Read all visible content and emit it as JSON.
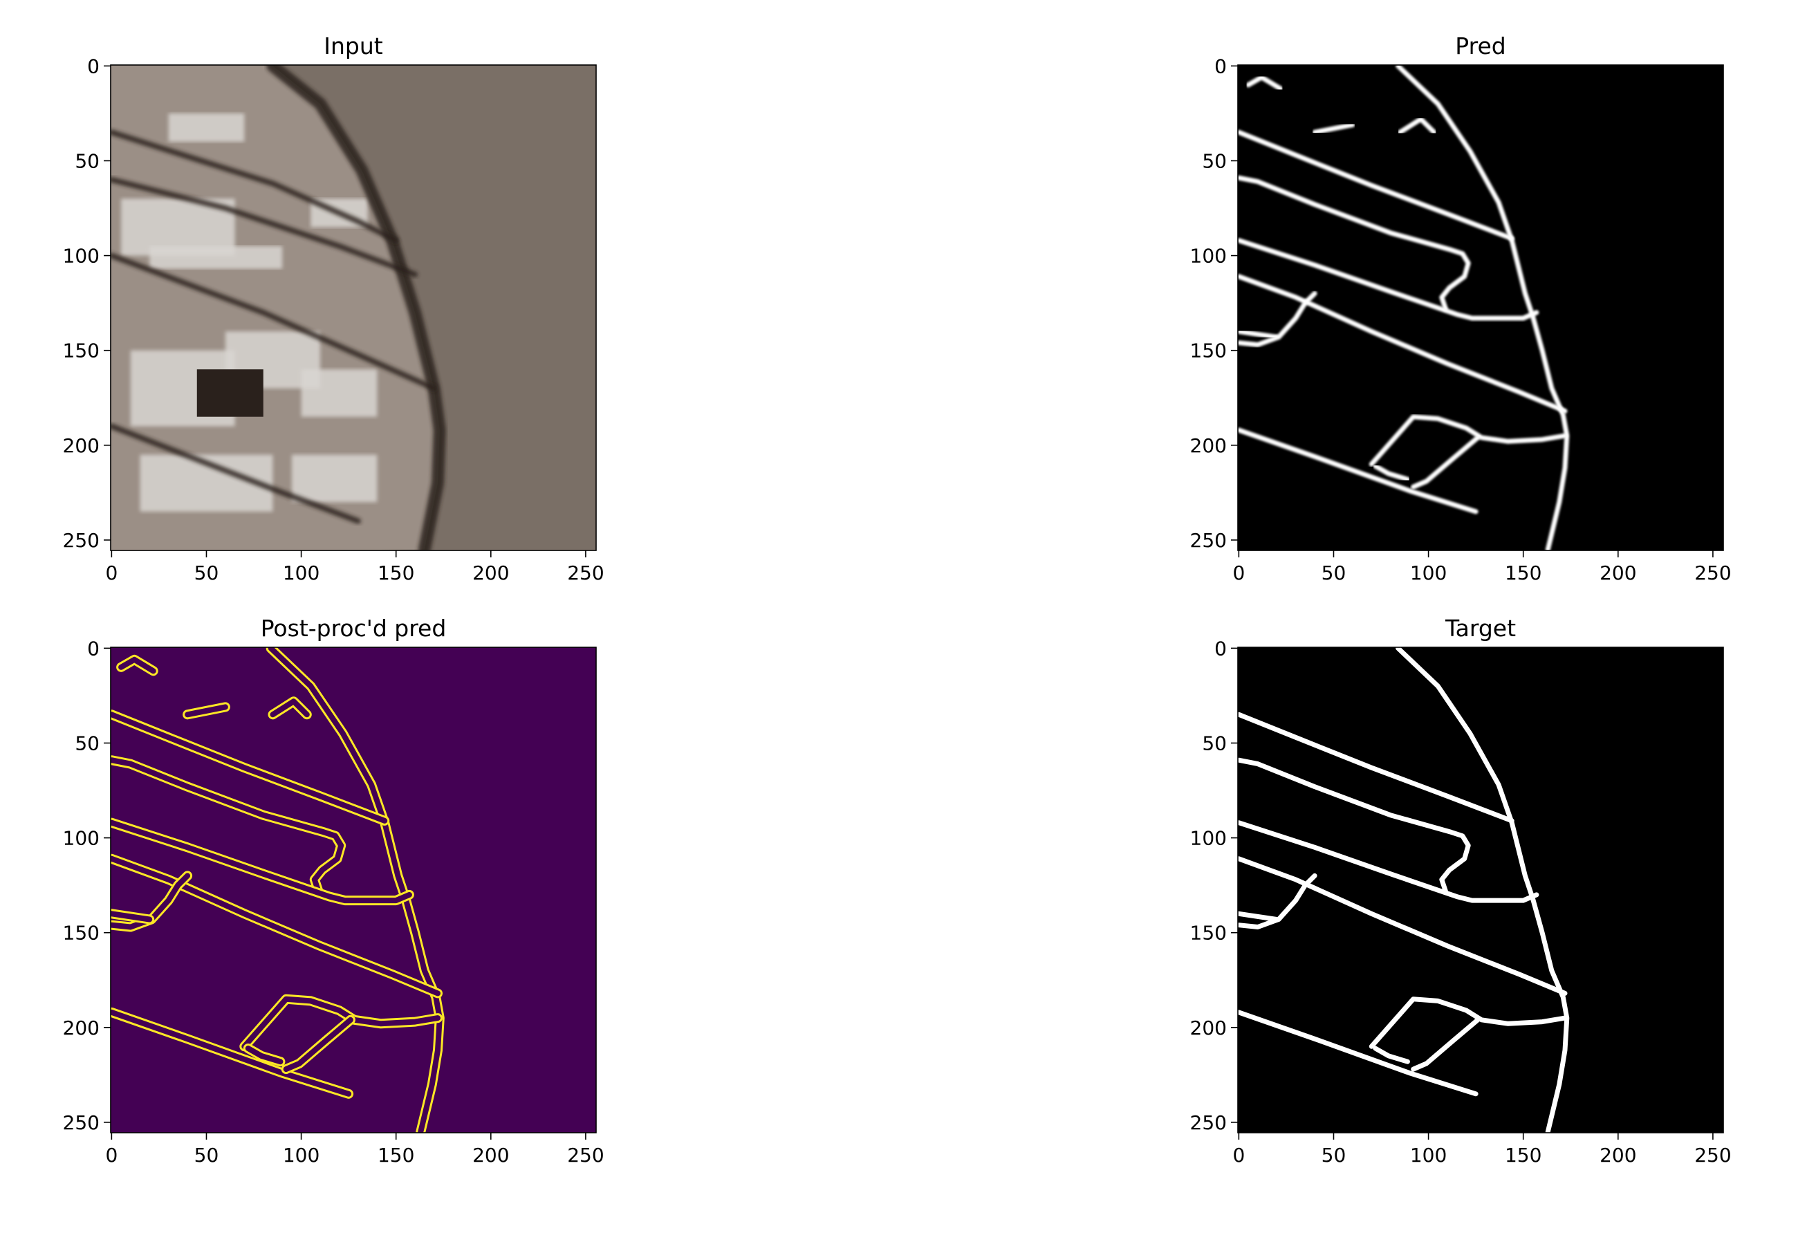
{
  "chart_data": [
    {
      "type": "image",
      "title": "Input",
      "image_kind": "satellite-photo",
      "xlim": [
        0,
        255
      ],
      "ylim": [
        255,
        0
      ],
      "xticks": [
        0,
        50,
        100,
        150,
        200,
        250
      ],
      "yticks": [
        0,
        50,
        100,
        150,
        200,
        250
      ],
      "colors": {
        "ground": "#7a6f66",
        "buildings": "#d9d6d2",
        "shadow": "#2a211c"
      },
      "features": [
        {
          "kind": "curve",
          "points": [
            [
              85,
              0
            ],
            [
              110,
              20
            ],
            [
              132,
              55
            ],
            [
              148,
              92
            ],
            [
              160,
              130
            ],
            [
              170,
              170
            ],
            [
              173,
              192
            ],
            [
              172,
              220
            ],
            [
              165,
              255
            ]
          ]
        },
        {
          "kind": "road",
          "points": [
            [
              0,
              35
            ],
            [
              85,
              62
            ],
            [
              130,
              82
            ],
            [
              150,
              92
            ]
          ]
        },
        {
          "kind": "road",
          "points": [
            [
              0,
              60
            ],
            [
              60,
              75
            ],
            [
              120,
              95
            ],
            [
              160,
              110
            ]
          ]
        },
        {
          "kind": "road",
          "points": [
            [
              0,
              100
            ],
            [
              80,
              130
            ],
            [
              170,
              170
            ]
          ]
        },
        {
          "kind": "road",
          "points": [
            [
              0,
              190
            ],
            [
              90,
              225
            ],
            [
              130,
              240
            ]
          ]
        }
      ]
    },
    {
      "type": "image",
      "title": "Pred",
      "image_kind": "grayscale-mask",
      "xlim": [
        0,
        255
      ],
      "ylim": [
        255,
        0
      ],
      "xticks": [
        0,
        50,
        100,
        150,
        200,
        250
      ],
      "yticks": [
        0,
        50,
        100,
        150,
        200,
        250
      ],
      "colors": {
        "background": "#000000",
        "foreground": "#ffffff"
      },
      "paths": [
        [
          [
            84,
            0
          ],
          [
            105,
            20
          ],
          [
            122,
            45
          ],
          [
            137,
            72
          ],
          [
            144,
            92
          ],
          [
            151,
            120
          ],
          [
            155,
            132
          ],
          [
            160,
            150
          ],
          [
            165,
            170
          ],
          [
            171,
            184
          ],
          [
            173,
            195
          ],
          [
            172,
            212
          ],
          [
            169,
            230
          ],
          [
            163,
            255
          ]
        ],
        [
          [
            0,
            35
          ],
          [
            30,
            47
          ],
          [
            70,
            63
          ],
          [
            110,
            78
          ],
          [
            144,
            91
          ]
        ],
        [
          [
            0,
            59
          ],
          [
            10,
            61
          ],
          [
            40,
            73
          ],
          [
            80,
            88
          ],
          [
            112,
            97
          ],
          [
            118,
            99
          ],
          [
            121,
            104
          ],
          [
            119,
            111
          ],
          [
            111,
            117
          ],
          [
            107,
            122
          ],
          [
            109,
            128
          ]
        ],
        [
          [
            0,
            92
          ],
          [
            40,
            105
          ],
          [
            80,
            119
          ],
          [
            115,
            131
          ],
          [
            123,
            133
          ],
          [
            150,
            133
          ],
          [
            157,
            130
          ]
        ],
        [
          [
            0,
            111
          ],
          [
            30,
            122
          ],
          [
            70,
            140
          ],
          [
            110,
            157
          ],
          [
            148,
            172
          ],
          [
            172,
            182
          ]
        ],
        [
          [
            0,
            146
          ],
          [
            10,
            147
          ],
          [
            21,
            143
          ],
          [
            30,
            133
          ],
          [
            35,
            125
          ],
          [
            40,
            120
          ]
        ],
        [
          [
            0,
            192
          ],
          [
            40,
            206
          ],
          [
            90,
            224
          ],
          [
            125,
            235
          ]
        ],
        [
          [
            70,
            210
          ],
          [
            92,
            185
          ],
          [
            105,
            186
          ],
          [
            120,
            191
          ],
          [
            128,
            196
          ],
          [
            142,
            198
          ],
          [
            160,
            197
          ],
          [
            172,
            195
          ]
        ],
        [
          [
            92,
            222
          ],
          [
            99,
            219
          ],
          [
            113,
            207
          ],
          [
            126,
            196
          ]
        ],
        [
          [
            72,
            211
          ],
          [
            79,
            215
          ],
          [
            89,
            218
          ]
        ],
        [
          [
            0,
            140
          ],
          [
            20,
            143
          ]
        ],
        [
          [
            5,
            10
          ],
          [
            12,
            6
          ],
          [
            22,
            12
          ]
        ],
        [
          [
            40,
            35
          ],
          [
            60,
            31
          ]
        ],
        [
          [
            85,
            35
          ],
          [
            96,
            28
          ],
          [
            103,
            35
          ]
        ]
      ]
    },
    {
      "type": "image",
      "title": "Post-proc'd pred",
      "image_kind": "viridis-contour",
      "xlim": [
        0,
        255
      ],
      "ylim": [
        255,
        0
      ],
      "xticks": [
        0,
        50,
        100,
        150,
        200,
        250
      ],
      "yticks": [
        0,
        50,
        100,
        150,
        200,
        250
      ],
      "colors": {
        "background": "#440154",
        "foreground": "#fde725"
      },
      "paths": [
        [
          [
            84,
            0
          ],
          [
            105,
            20
          ],
          [
            122,
            45
          ],
          [
            137,
            72
          ],
          [
            144,
            92
          ],
          [
            151,
            120
          ],
          [
            155,
            132
          ],
          [
            160,
            150
          ],
          [
            165,
            170
          ],
          [
            171,
            184
          ],
          [
            173,
            195
          ],
          [
            172,
            212
          ],
          [
            169,
            230
          ],
          [
            163,
            255
          ]
        ],
        [
          [
            0,
            35
          ],
          [
            30,
            47
          ],
          [
            70,
            63
          ],
          [
            110,
            78
          ],
          [
            144,
            91
          ]
        ],
        [
          [
            0,
            59
          ],
          [
            10,
            61
          ],
          [
            40,
            73
          ],
          [
            80,
            88
          ],
          [
            112,
            97
          ],
          [
            118,
            99
          ],
          [
            121,
            104
          ],
          [
            119,
            111
          ],
          [
            111,
            117
          ],
          [
            107,
            122
          ],
          [
            109,
            128
          ]
        ],
        [
          [
            0,
            92
          ],
          [
            40,
            105
          ],
          [
            80,
            119
          ],
          [
            115,
            131
          ],
          [
            123,
            133
          ],
          [
            150,
            133
          ],
          [
            157,
            130
          ]
        ],
        [
          [
            0,
            111
          ],
          [
            30,
            122
          ],
          [
            70,
            140
          ],
          [
            110,
            157
          ],
          [
            148,
            172
          ],
          [
            172,
            182
          ]
        ],
        [
          [
            0,
            146
          ],
          [
            10,
            147
          ],
          [
            21,
            143
          ],
          [
            30,
            133
          ],
          [
            35,
            125
          ],
          [
            40,
            120
          ]
        ],
        [
          [
            0,
            192
          ],
          [
            40,
            206
          ],
          [
            90,
            224
          ],
          [
            125,
            235
          ]
        ],
        [
          [
            70,
            210
          ],
          [
            92,
            185
          ],
          [
            105,
            186
          ],
          [
            120,
            191
          ],
          [
            128,
            196
          ],
          [
            142,
            198
          ],
          [
            160,
            197
          ],
          [
            172,
            195
          ]
        ],
        [
          [
            92,
            222
          ],
          [
            99,
            219
          ],
          [
            113,
            207
          ],
          [
            126,
            196
          ]
        ],
        [
          [
            72,
            211
          ],
          [
            79,
            215
          ],
          [
            89,
            218
          ]
        ],
        [
          [
            0,
            140
          ],
          [
            20,
            143
          ]
        ],
        [
          [
            5,
            10
          ],
          [
            12,
            6
          ],
          [
            22,
            12
          ]
        ],
        [
          [
            40,
            35
          ],
          [
            60,
            31
          ]
        ],
        [
          [
            85,
            35
          ],
          [
            96,
            28
          ],
          [
            103,
            35
          ]
        ]
      ]
    },
    {
      "type": "image",
      "title": "Target",
      "image_kind": "binary-mask",
      "xlim": [
        0,
        255
      ],
      "ylim": [
        255,
        0
      ],
      "xticks": [
        0,
        50,
        100,
        150,
        200,
        250
      ],
      "yticks": [
        0,
        50,
        100,
        150,
        200,
        250
      ],
      "colors": {
        "background": "#000000",
        "foreground": "#ffffff"
      },
      "paths": [
        [
          [
            84,
            0
          ],
          [
            105,
            20
          ],
          [
            122,
            45
          ],
          [
            137,
            72
          ],
          [
            144,
            92
          ],
          [
            151,
            120
          ],
          [
            155,
            132
          ],
          [
            160,
            150
          ],
          [
            165,
            170
          ],
          [
            171,
            184
          ],
          [
            173,
            195
          ],
          [
            172,
            212
          ],
          [
            169,
            230
          ],
          [
            163,
            255
          ]
        ],
        [
          [
            0,
            35
          ],
          [
            30,
            47
          ],
          [
            70,
            63
          ],
          [
            110,
            78
          ],
          [
            144,
            91
          ]
        ],
        [
          [
            0,
            59
          ],
          [
            10,
            61
          ],
          [
            40,
            73
          ],
          [
            80,
            88
          ],
          [
            112,
            97
          ],
          [
            118,
            99
          ],
          [
            121,
            104
          ],
          [
            119,
            111
          ],
          [
            111,
            117
          ],
          [
            107,
            122
          ],
          [
            109,
            128
          ]
        ],
        [
          [
            0,
            92
          ],
          [
            40,
            105
          ],
          [
            80,
            119
          ],
          [
            115,
            131
          ],
          [
            123,
            133
          ],
          [
            150,
            133
          ],
          [
            157,
            130
          ]
        ],
        [
          [
            0,
            111
          ],
          [
            30,
            122
          ],
          [
            70,
            140
          ],
          [
            110,
            157
          ],
          [
            148,
            172
          ],
          [
            172,
            182
          ]
        ],
        [
          [
            0,
            146
          ],
          [
            10,
            147
          ],
          [
            21,
            143
          ],
          [
            30,
            133
          ],
          [
            35,
            125
          ],
          [
            40,
            120
          ]
        ],
        [
          [
            0,
            192
          ],
          [
            40,
            206
          ],
          [
            90,
            224
          ],
          [
            125,
            235
          ]
        ],
        [
          [
            70,
            210
          ],
          [
            92,
            185
          ],
          [
            105,
            186
          ],
          [
            120,
            191
          ],
          [
            128,
            196
          ],
          [
            142,
            198
          ],
          [
            160,
            197
          ],
          [
            172,
            195
          ]
        ],
        [
          [
            92,
            222
          ],
          [
            99,
            219
          ],
          [
            113,
            207
          ],
          [
            126,
            196
          ]
        ],
        [
          [
            72,
            211
          ],
          [
            79,
            215
          ],
          [
            89,
            218
          ]
        ],
        [
          [
            0,
            140
          ],
          [
            20,
            143
          ]
        ]
      ]
    }
  ]
}
